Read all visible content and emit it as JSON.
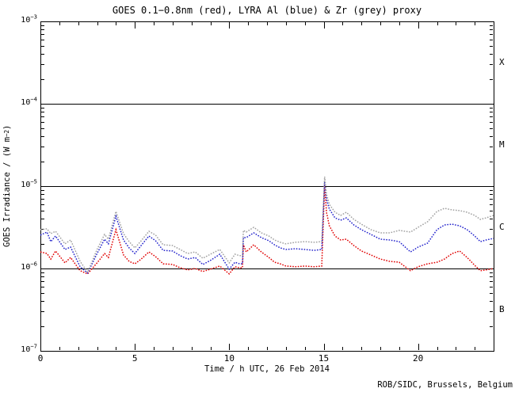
{
  "credit": "ROB/SIDC, Brussels, Belgium",
  "chart_data": {
    "type": "line",
    "title": "GOES 0.1−0.8nm (red), LYRA Al (blue) & Zr (grey) proxy",
    "xlabel": "Time / h UTC, 26 Feb 2014",
    "ylabel_parts": {
      "prefix": "GOES Irradiance / (W m",
      "exponent": "−2",
      "suffix": ")"
    },
    "background": "#ffffff",
    "frame_color": "#000000",
    "grid": false,
    "x_range": [
      0,
      24
    ],
    "y_range_exponents": [
      -7,
      -3
    ],
    "x_major_ticks": [
      0,
      5,
      10,
      15,
      20
    ],
    "x_minor_step": 1,
    "y_tick_exponents": [
      -3,
      -4,
      -5,
      -6,
      -7
    ],
    "hline_values": [
      0.0001,
      1e-05,
      1e-06
    ],
    "flare_classes": [
      {
        "label": "X",
        "center_exponent": -3.5
      },
      {
        "label": "M",
        "center_exponent": -4.5
      },
      {
        "label": "C",
        "center_exponent": -5.5
      },
      {
        "label": "B",
        "center_exponent": -6.5
      }
    ],
    "legend": [
      {
        "name": "GOES 0.1−0.8nm",
        "color": "#e00000"
      },
      {
        "name": "LYRA Al proxy",
        "color": "#2222cc"
      },
      {
        "name": "LYRA Zr proxy",
        "color": "#a0a0a0"
      }
    ],
    "x": [
      0,
      0.35,
      0.55,
      0.8,
      1.3,
      1.6,
      2.1,
      2.5,
      3.0,
      3.4,
      3.6,
      4.0,
      4.4,
      4.7,
      5.0,
      5.3,
      5.75,
      6.1,
      6.5,
      7.0,
      7.4,
      7.8,
      8.2,
      8.6,
      9.0,
      9.5,
      10.0,
      10.3,
      10.55,
      10.7,
      10.75,
      10.9,
      11.3,
      11.7,
      12.1,
      12.4,
      12.7,
      13.0,
      13.5,
      14.0,
      14.5,
      14.9,
      15.05,
      15.15,
      15.3,
      15.6,
      15.9,
      16.2,
      16.6,
      17.0,
      17.5,
      18.0,
      18.5,
      19.0,
      19.6,
      20.0,
      20.5,
      21.0,
      21.4,
      21.8,
      22.2,
      22.6,
      23.0,
      23.3,
      23.6,
      24.0
    ],
    "series": [
      {
        "name": "GOES 0.1−0.8nm",
        "color": "#e00000",
        "values": [
          1.59e-06,
          1.52e-06,
          1.3e-06,
          1.63e-06,
          1.17e-06,
          1.36e-06,
          9.4e-07,
          8.6e-07,
          1.17e-06,
          1.52e-06,
          1.36e-06,
          2.96e-06,
          1.46e-06,
          1.22e-06,
          1.14e-06,
          1.28e-06,
          1.59e-06,
          1.39e-06,
          1.14e-06,
          1.12e-06,
          1.02e-06,
          9.6e-07,
          1e-06,
          9.2e-07,
          9.8e-07,
          1.07e-06,
          8.6e-07,
          1.05e-06,
          1.02e-06,
          1.02e-06,
          1.94e-06,
          1.59e-06,
          1.94e-06,
          1.59e-06,
          1.36e-06,
          1.19e-06,
          1.14e-06,
          1.07e-06,
          1.05e-06,
          1.07e-06,
          1.05e-06,
          1.07e-06,
          1.04e-05,
          4.8e-06,
          3.3e-06,
          2.48e-06,
          2.22e-06,
          2.27e-06,
          1.9e-06,
          1.63e-06,
          1.46e-06,
          1.3e-06,
          1.22e-06,
          1.19e-06,
          9.4e-07,
          1.05e-06,
          1.14e-06,
          1.19e-06,
          1.3e-06,
          1.52e-06,
          1.63e-06,
          1.36e-06,
          1.09e-06,
          9.4e-07,
          9.6e-07,
          1e-06
        ]
      },
      {
        "name": "LYRA Al proxy",
        "color": "#2222cc",
        "values": [
          2.54e-06,
          2.77e-06,
          2.12e-06,
          2.48e-06,
          1.7e-06,
          1.82e-06,
          1.05e-06,
          8.8e-07,
          1.52e-06,
          2.27e-06,
          1.99e-06,
          4.31e-06,
          2.22e-06,
          1.78e-06,
          1.52e-06,
          1.86e-06,
          2.48e-06,
          2.17e-06,
          1.66e-06,
          1.63e-06,
          1.43e-06,
          1.3e-06,
          1.36e-06,
          1.12e-06,
          1.25e-06,
          1.49e-06,
          9.8e-07,
          1.19e-06,
          1.14e-06,
          1.14e-06,
          2.37e-06,
          2.37e-06,
          2.71e-06,
          2.37e-06,
          2.17e-06,
          1.94e-06,
          1.78e-06,
          1.7e-06,
          1.74e-06,
          1.7e-06,
          1.66e-06,
          1.7e-06,
          1.14e-05,
          6.9e-06,
          5.26e-06,
          4.12e-06,
          3.86e-06,
          4.12e-06,
          3.38e-06,
          2.96e-06,
          2.59e-06,
          2.27e-06,
          2.22e-06,
          2.12e-06,
          1.59e-06,
          1.82e-06,
          2.03e-06,
          2.96e-06,
          3.38e-06,
          3.45e-06,
          3.3e-06,
          2.96e-06,
          2.48e-06,
          2.12e-06,
          2.22e-06,
          2.32e-06
        ]
      },
      {
        "name": "LYRA Zr proxy",
        "color": "#a0a0a0",
        "values": [
          2.96e-06,
          3.03e-06,
          2.65e-06,
          2.83e-06,
          1.99e-06,
          2.22e-06,
          1.22e-06,
          9e-07,
          1.7e-06,
          2.59e-06,
          2.27e-06,
          4.92e-06,
          2.65e-06,
          2.12e-06,
          1.78e-06,
          2.12e-06,
          2.83e-06,
          2.54e-06,
          1.94e-06,
          1.9e-06,
          1.7e-06,
          1.52e-06,
          1.59e-06,
          1.33e-06,
          1.49e-06,
          1.7e-06,
          1.17e-06,
          1.49e-06,
          1.43e-06,
          1.43e-06,
          2.9e-06,
          2.77e-06,
          3.16e-06,
          2.71e-06,
          2.48e-06,
          2.22e-06,
          2.08e-06,
          1.99e-06,
          2.08e-06,
          2.12e-06,
          2.08e-06,
          2.12e-06,
          1.3e-05,
          8e-06,
          6e-06,
          4.82e-06,
          4.41e-06,
          4.82e-06,
          3.95e-06,
          3.45e-06,
          2.96e-06,
          2.71e-06,
          2.71e-06,
          2.9e-06,
          2.77e-06,
          3.16e-06,
          3.69e-06,
          4.92e-06,
          5.38e-06,
          5.15e-06,
          5.04e-06,
          4.82e-06,
          4.41e-06,
          3.95e-06,
          4.12e-06,
          4.41e-06
        ]
      }
    ]
  }
}
